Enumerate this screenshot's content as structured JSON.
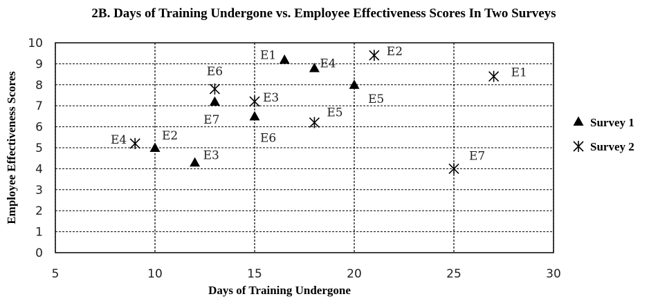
{
  "chart_data": {
    "type": "scatter",
    "title": "2B. Days of Training Undergone vs. Employee Effectiveness Scores In Two Surveys",
    "xlabel": "Days of Training Undergone",
    "ylabel": "Employee Effectiveness Scores",
    "xlim": [
      5,
      30
    ],
    "ylim": [
      0,
      10
    ],
    "x_ticks": [
      "5",
      "10",
      "15",
      "20",
      "25",
      "30"
    ],
    "y_ticks": [
      "0",
      "1",
      "2",
      "3",
      "4",
      "5",
      "6",
      "7",
      "8",
      "9",
      "10"
    ],
    "grid": true,
    "legend": "right",
    "series": [
      {
        "name": "Survey 1",
        "marker": "triangle",
        "points": [
          {
            "label": "E1",
            "x": 16.5,
            "y": 9.2
          },
          {
            "label": "E2",
            "x": 10,
            "y": 5.0
          },
          {
            "label": "E3",
            "x": 12,
            "y": 4.3
          },
          {
            "label": "E4",
            "x": 18,
            "y": 8.8
          },
          {
            "label": "E5",
            "x": 20,
            "y": 8.0
          },
          {
            "label": "E6",
            "x": 15,
            "y": 6.5
          },
          {
            "label": "E7",
            "x": 13,
            "y": 7.2
          }
        ]
      },
      {
        "name": "Survey 2",
        "marker": "asterisk",
        "points": [
          {
            "label": "E1",
            "x": 27,
            "y": 8.4
          },
          {
            "label": "E2",
            "x": 21,
            "y": 9.4
          },
          {
            "label": "E3",
            "x": 15,
            "y": 7.2
          },
          {
            "label": "E4",
            "x": 9,
            "y": 5.2
          },
          {
            "label": "E5",
            "x": 18,
            "y": 6.2
          },
          {
            "label": "E6",
            "x": 13,
            "y": 7.8
          },
          {
            "label": "E7",
            "x": 25,
            "y": 4.0
          }
        ]
      }
    ]
  }
}
